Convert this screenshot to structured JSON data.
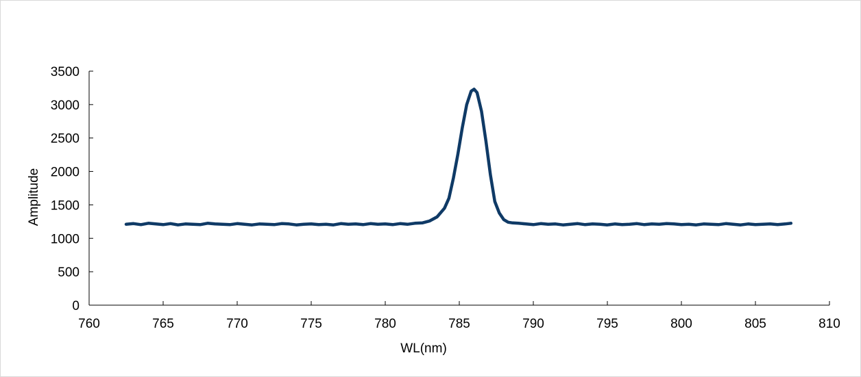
{
  "chart_data": {
    "type": "line",
    "title": "",
    "xlabel": "WL(nm)",
    "ylabel": "Amplitude",
    "xlim": [
      760,
      810
    ],
    "ylim": [
      0,
      3500
    ],
    "xticks": [
      760,
      765,
      770,
      775,
      780,
      785,
      790,
      795,
      800,
      805,
      810
    ],
    "yticks": [
      0,
      500,
      1000,
      1500,
      2000,
      2500,
      3000,
      3500
    ],
    "grid": false,
    "legend": "none",
    "series": [
      {
        "color": "#0f3a66",
        "x": [
          762.5,
          763.0,
          763.5,
          764.0,
          764.5,
          765.0,
          765.5,
          766.0,
          766.5,
          767.0,
          767.5,
          768.0,
          768.5,
          769.0,
          769.5,
          770.0,
          770.5,
          771.0,
          771.5,
          772.0,
          772.5,
          773.0,
          773.5,
          774.0,
          774.5,
          775.0,
          775.5,
          776.0,
          776.5,
          777.0,
          777.5,
          778.0,
          778.5,
          779.0,
          779.5,
          780.0,
          780.5,
          781.0,
          781.5,
          782.0,
          782.5,
          783.0,
          783.5,
          784.0,
          784.3,
          784.6,
          784.9,
          785.2,
          785.5,
          785.8,
          786.0,
          786.2,
          786.5,
          786.8,
          787.1,
          787.4,
          787.7,
          788.0,
          788.3,
          788.6,
          789.0,
          789.5,
          790.0,
          790.5,
          791.0,
          791.5,
          792.0,
          792.5,
          793.0,
          793.5,
          794.0,
          794.5,
          795.0,
          795.5,
          796.0,
          796.5,
          797.0,
          797.5,
          798.0,
          798.5,
          799.0,
          799.5,
          800.0,
          800.5,
          801.0,
          801.5,
          802.0,
          802.5,
          803.0,
          803.5,
          804.0,
          804.5,
          805.0,
          805.5,
          806.0,
          806.5,
          807.0,
          807.4
        ],
        "y": [
          1210,
          1220,
          1205,
          1225,
          1215,
          1205,
          1220,
          1200,
          1215,
          1210,
          1205,
          1225,
          1215,
          1210,
          1205,
          1220,
          1210,
          1200,
          1215,
          1210,
          1205,
          1220,
          1215,
          1200,
          1210,
          1215,
          1205,
          1210,
          1200,
          1220,
          1210,
          1215,
          1205,
          1220,
          1210,
          1215,
          1205,
          1220,
          1210,
          1225,
          1230,
          1260,
          1320,
          1450,
          1600,
          1900,
          2250,
          2650,
          3000,
          3200,
          3230,
          3180,
          2900,
          2450,
          1950,
          1550,
          1380,
          1280,
          1240,
          1230,
          1225,
          1215,
          1205,
          1220,
          1210,
          1215,
          1200,
          1210,
          1220,
          1205,
          1215,
          1210,
          1200,
          1215,
          1205,
          1210,
          1220,
          1205,
          1215,
          1210,
          1220,
          1215,
          1205,
          1210,
          1200,
          1215,
          1210,
          1205,
          1220,
          1210,
          1200,
          1215,
          1205,
          1210,
          1215,
          1205,
          1215,
          1225
        ]
      }
    ]
  }
}
